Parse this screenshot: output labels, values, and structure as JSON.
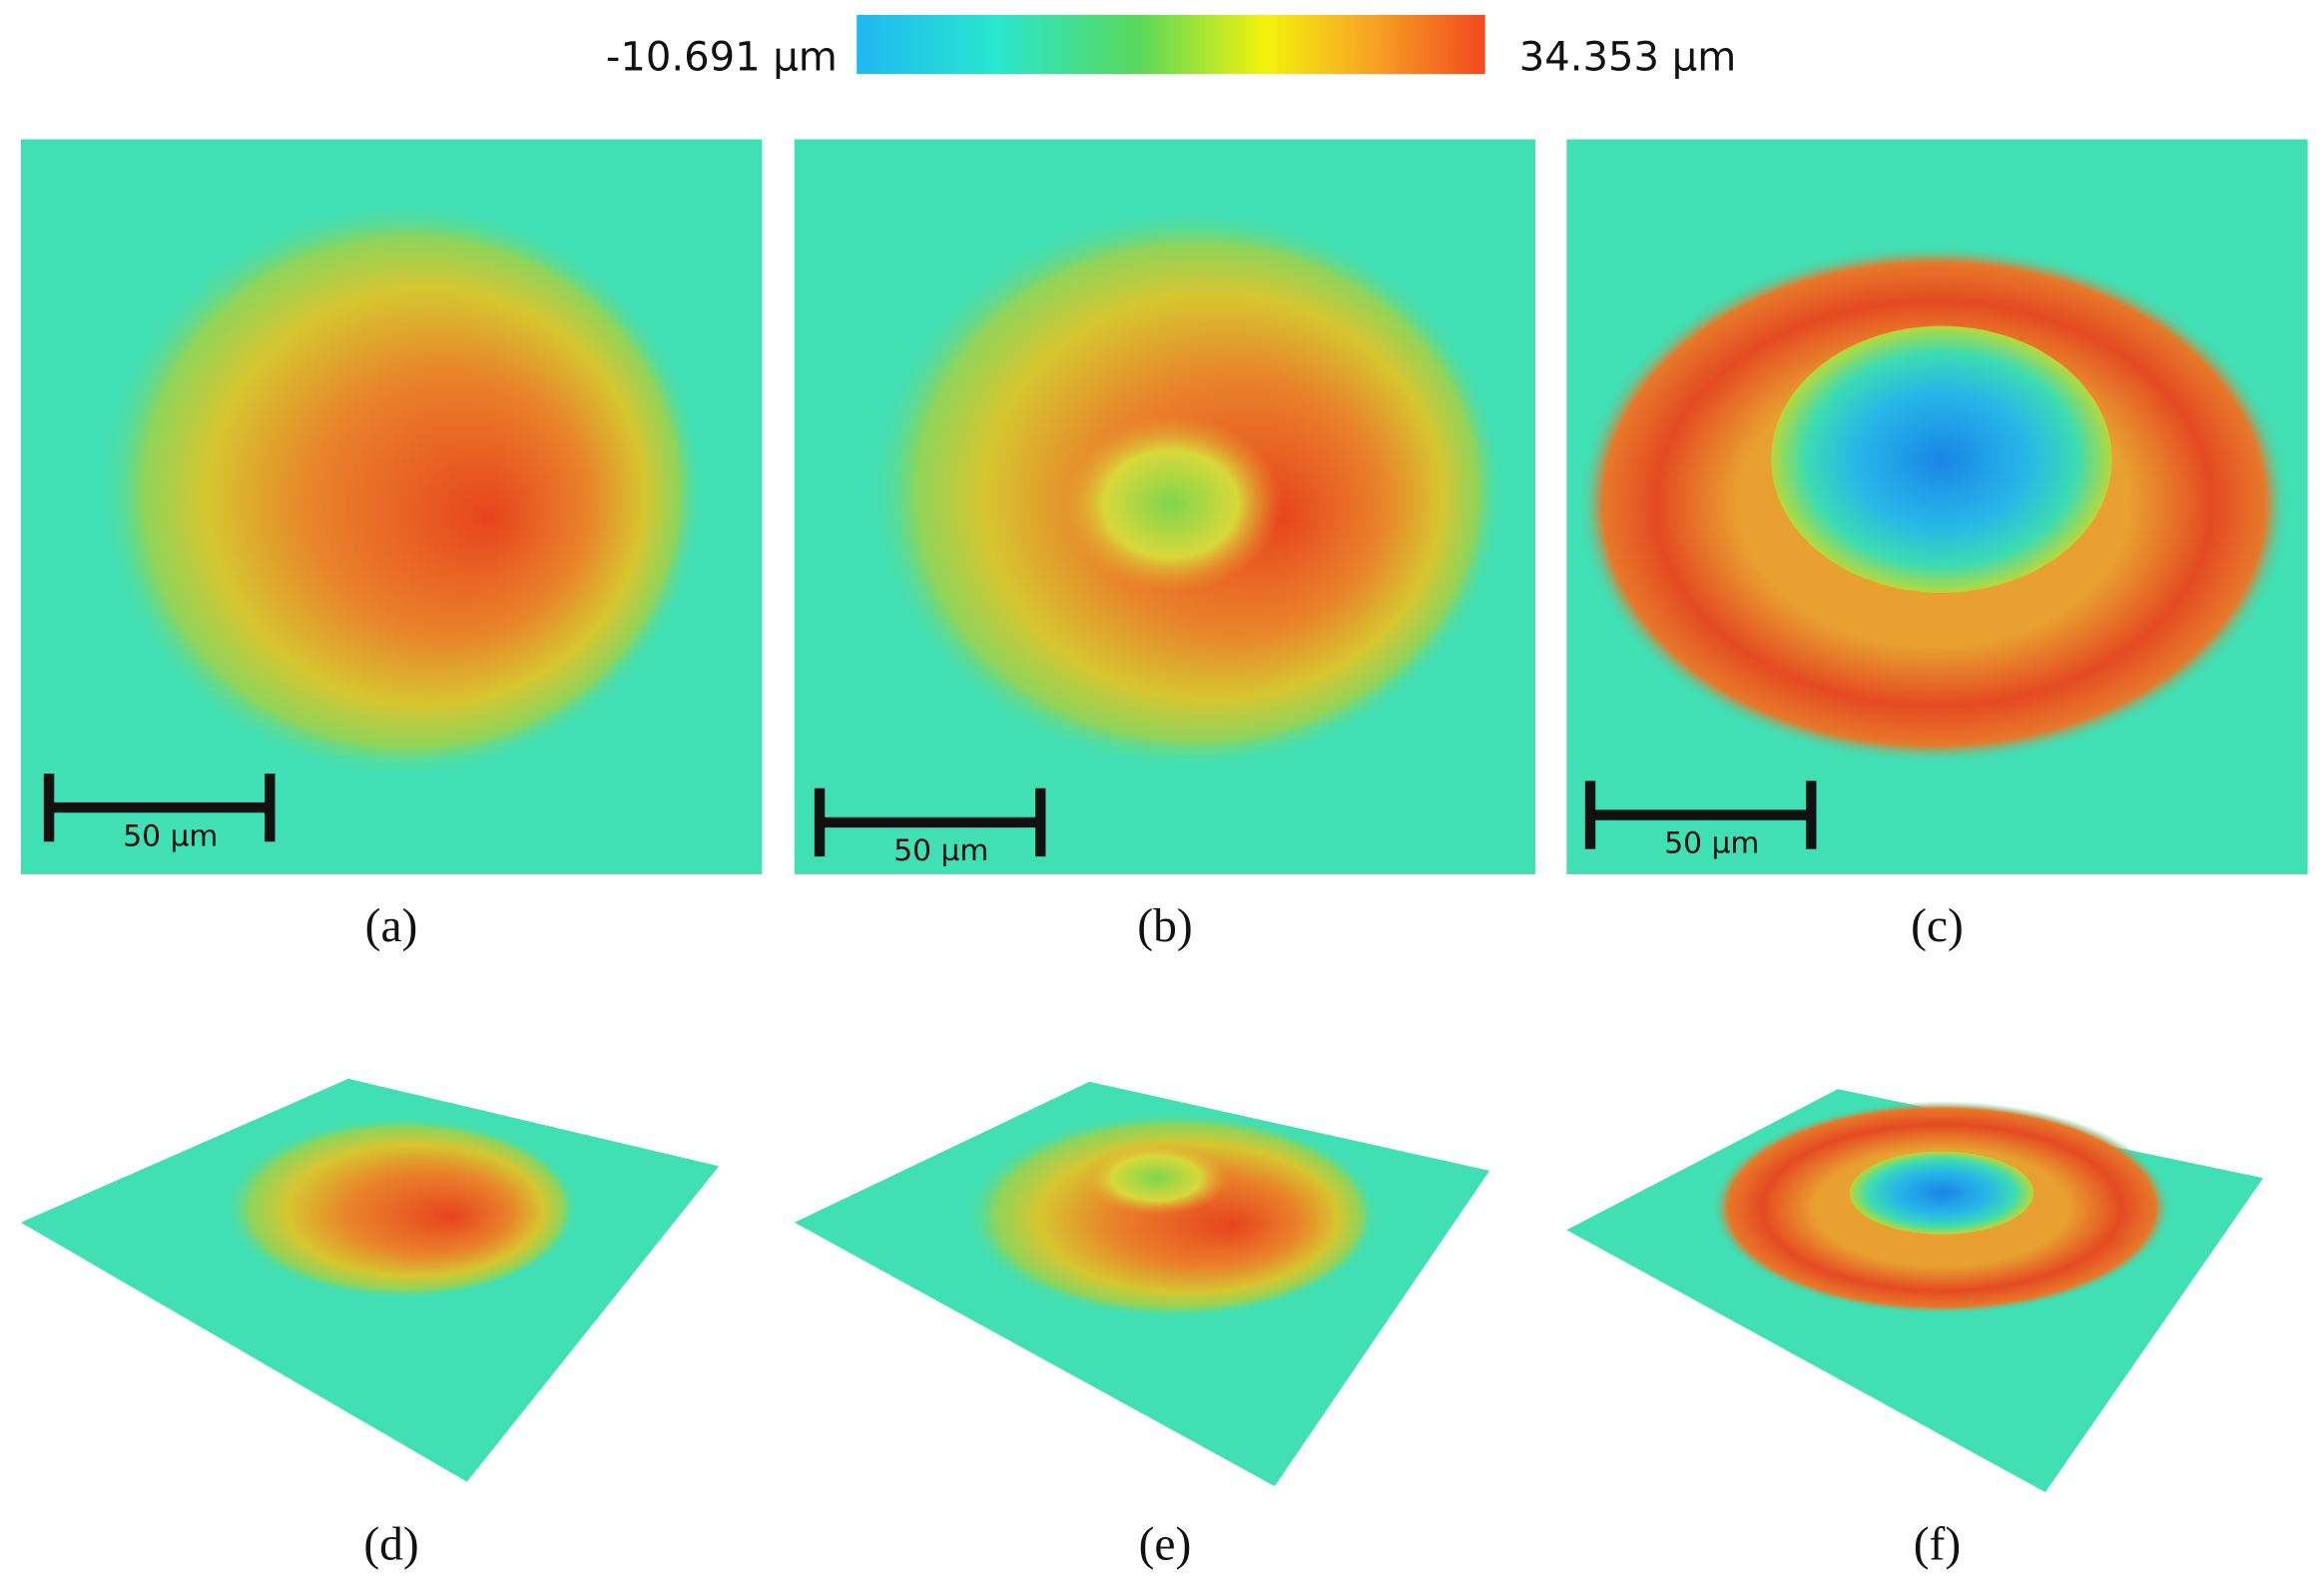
{
  "colorbar": {
    "min_label": "-10.691 µm",
    "max_label": "34.353 µm"
  },
  "panels": [
    {
      "label": "(a)",
      "scale_bar": "50 µm"
    },
    {
      "label": "(b)",
      "scale_bar": "50 µm"
    },
    {
      "label": "(c)",
      "scale_bar": "50 µm"
    },
    {
      "label": "(d)"
    },
    {
      "label": "(e)"
    },
    {
      "label": "(f)"
    }
  ]
}
